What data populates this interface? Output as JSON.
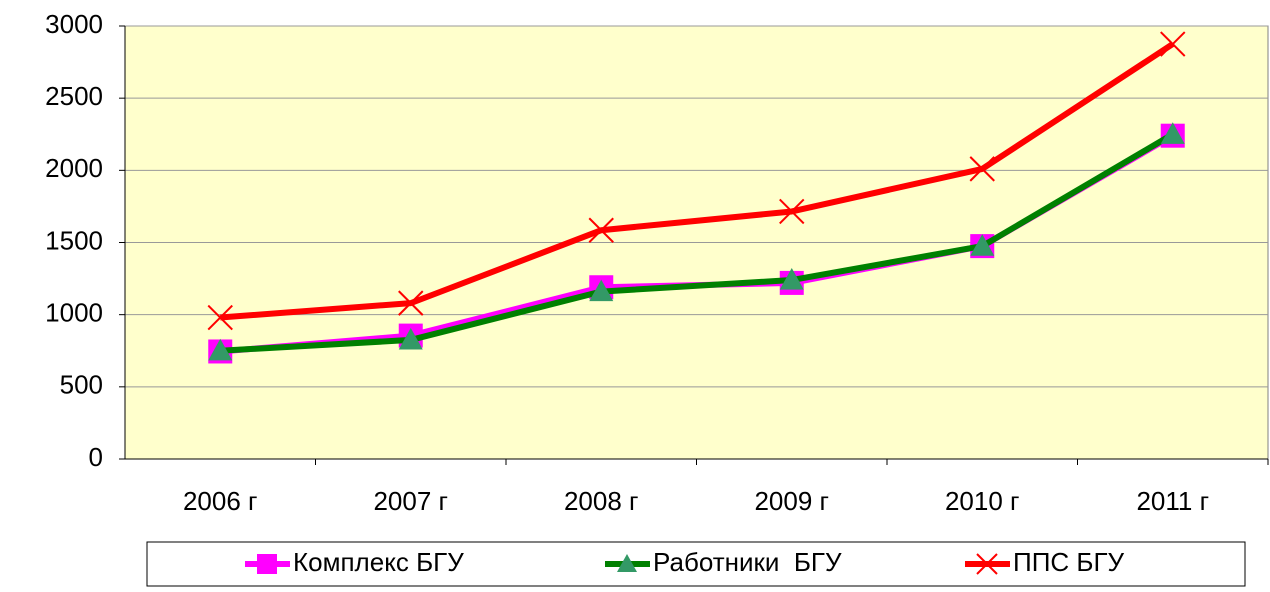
{
  "chart_data": {
    "type": "line",
    "categories": [
      "2006 г",
      "2007 г",
      "2008 г",
      "2009 г",
      "2010 г",
      "2011 г"
    ],
    "series": [
      {
        "name": "Комплекс БГУ",
        "color": "#ff00ff",
        "marker": "square",
        "values": [
          745,
          855,
          1190,
          1220,
          1475,
          2240
        ]
      },
      {
        "name": "Работники  БГУ",
        "color": "#008000",
        "marker": "triangle",
        "values": [
          750,
          825,
          1160,
          1240,
          1475,
          2250
        ]
      },
      {
        "name": "ППС БГУ",
        "color": "#ff0000",
        "marker": "x",
        "values": [
          980,
          1080,
          1585,
          1715,
          2010,
          2875
        ]
      }
    ],
    "ylim": [
      0,
      3000
    ],
    "yticks": [
      0,
      500,
      1000,
      1500,
      2000,
      2500,
      3000
    ],
    "grid": true,
    "legend": "bottom"
  }
}
